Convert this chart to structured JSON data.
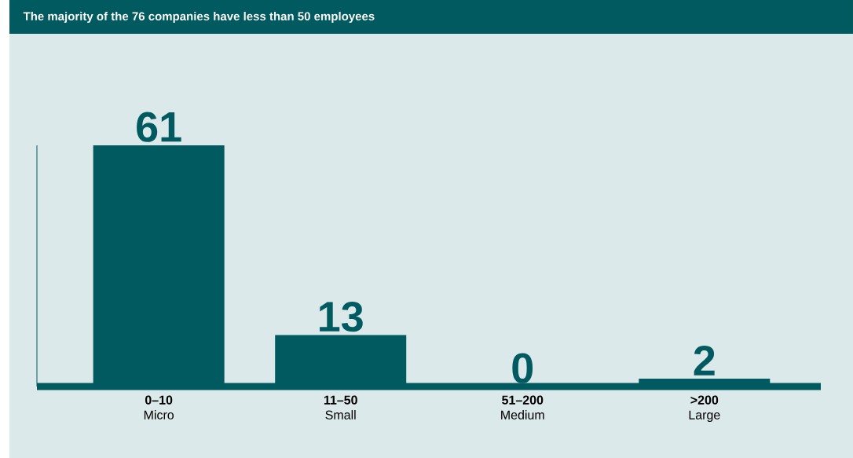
{
  "chart_data": {
    "type": "bar",
    "title": "The majority of the 76 companies have less than 50 employees",
    "categories": [
      "**0–10** Micro",
      "**11–50** Small",
      "**51–200** Medium",
      "**>200** Large"
    ],
    "values": [
      61,
      13,
      0,
      2
    ],
    "color": "#005a5f",
    "data_labels": true
  }
}
